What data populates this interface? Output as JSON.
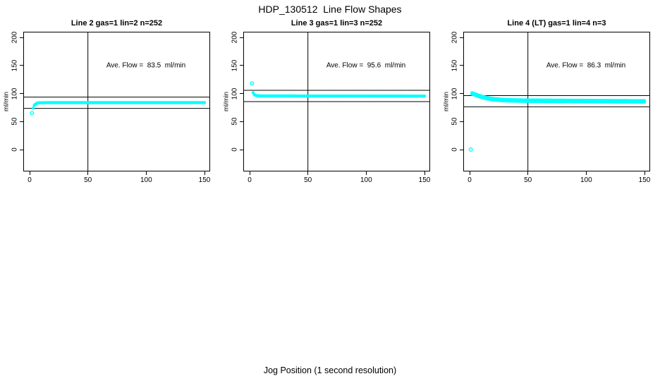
{
  "page": {
    "title": "HDP_130512  Line Flow Shapes",
    "xlabel": "Jog Position (1 second resolution)",
    "background_color": "#ffffff",
    "axis_color": "#000000",
    "marker_color": "#00ffff"
  },
  "chart_data": [
    {
      "type": "scatter",
      "title": "Line 2 gas=1 lin=2 n=252",
      "gas": 1,
      "lin": 2,
      "n": 252,
      "annotation": "Ave. Flow =  83.5  ml/min",
      "ave_flow_ml_min": 83.5,
      "ylabel": "ml/min",
      "xticks": [
        0,
        50,
        100,
        150
      ],
      "yticks": [
        0,
        50,
        100,
        150,
        200
      ],
      "xlim": [
        0,
        150
      ],
      "ylim": [
        0,
        200
      ],
      "vline_x": 50,
      "ref_lines_y": [
        93.5,
        73.5
      ],
      "outlier_points": [
        [
          2,
          65
        ]
      ],
      "series_control_points": [
        [
          3,
          74
        ],
        [
          4,
          79
        ],
        [
          5,
          81
        ],
        [
          6,
          82.5
        ],
        [
          7,
          83
        ],
        [
          8,
          83.4
        ],
        [
          10,
          83.6
        ],
        [
          20,
          83.7
        ],
        [
          50,
          83.7
        ],
        [
          100,
          83.7
        ],
        [
          150,
          83.7
        ]
      ],
      "trace_offsets": [
        0
      ],
      "grid": false
    },
    {
      "type": "scatter",
      "title": "Line 3 gas=1 lin=3 n=252",
      "gas": 1,
      "lin": 3,
      "n": 252,
      "annotation": "Ave. Flow =  95.6  ml/min",
      "ave_flow_ml_min": 95.6,
      "ylabel": "ml/min",
      "xticks": [
        0,
        50,
        100,
        150
      ],
      "yticks": [
        0,
        50,
        100,
        150,
        200
      ],
      "xlim": [
        0,
        150
      ],
      "ylim": [
        0,
        200
      ],
      "vline_x": 50,
      "ref_lines_y": [
        105.6,
        85.6
      ],
      "outlier_points": [
        [
          2,
          118
        ]
      ],
      "series_control_points": [
        [
          3,
          101.5
        ],
        [
          4,
          98
        ],
        [
          5,
          96.8
        ],
        [
          6,
          96.2
        ],
        [
          8,
          95.8
        ],
        [
          12,
          95.6
        ],
        [
          30,
          95.6
        ],
        [
          80,
          95.5
        ],
        [
          150,
          95.4
        ]
      ],
      "trace_offsets": [
        0
      ],
      "grid": false
    },
    {
      "type": "scatter",
      "title": "Line 4 (LT) gas=1 lin=4 n=3",
      "gas": 1,
      "lin": 4,
      "n": 3,
      "annotation": "Ave. Flow =  86.3  ml/min",
      "ave_flow_ml_min": 86.3,
      "ylabel": "ml/min",
      "xticks": [
        0,
        50,
        100,
        150
      ],
      "yticks": [
        0,
        50,
        100,
        150,
        200
      ],
      "xlim": [
        0,
        150
      ],
      "ylim": [
        0,
        200
      ],
      "vline_x": 50,
      "ref_lines_y": [
        96.3,
        76.3
      ],
      "outlier_points": [
        [
          1,
          0
        ]
      ],
      "series_control_points": [
        [
          2,
          100
        ],
        [
          3,
          99.5
        ],
        [
          5,
          97.8
        ],
        [
          8,
          95.5
        ],
        [
          12,
          93
        ],
        [
          16,
          91.2
        ],
        [
          20,
          89.8
        ],
        [
          25,
          88.8
        ],
        [
          30,
          88.2
        ],
        [
          40,
          87.5
        ],
        [
          50,
          87.2
        ],
        [
          70,
          86.9
        ],
        [
          100,
          86.5
        ],
        [
          125,
          86.2
        ],
        [
          150,
          86
        ]
      ],
      "trace_offsets": [
        1.3,
        0,
        -1.3
      ],
      "grid": false
    }
  ]
}
